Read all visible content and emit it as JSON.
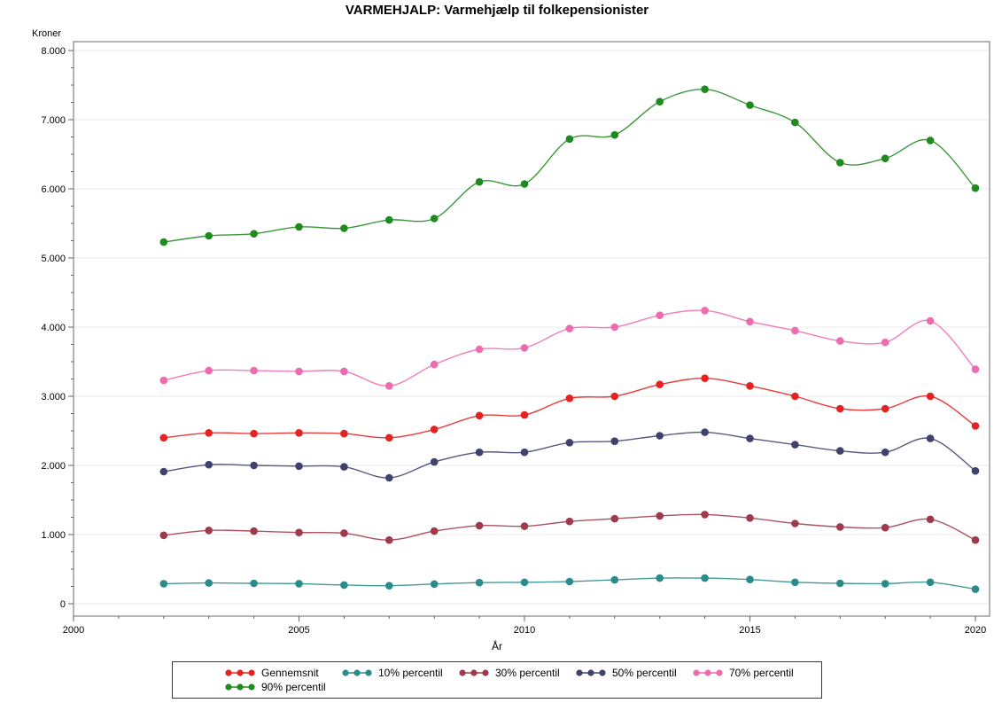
{
  "title": "VARMEHJALP: Varmehjælp til folkepensionister",
  "y_axis": {
    "label": "Kroner",
    "tick_values": [
      0,
      1000,
      2000,
      3000,
      4000,
      5000,
      6000,
      7000,
      8000
    ],
    "tick_labels": [
      "0",
      "1.000",
      "2.000",
      "3.000",
      "4.000",
      "5.000",
      "6.000",
      "7.000",
      "8.000"
    ],
    "minor_step": 250,
    "min": 0,
    "max": 8000
  },
  "x_axis": {
    "label": "År",
    "tick_values": [
      2000,
      2005,
      2010,
      2015,
      2020
    ],
    "tick_labels": [
      "2000",
      "2005",
      "2010",
      "2015",
      "2020"
    ],
    "minor_step": 1,
    "min": 2000,
    "max": 2020
  },
  "chart_data": {
    "type": "line",
    "title": "VARMEHJALP: Varmehjælp til folkepensionister",
    "xlabel": "År",
    "ylabel": "Kroner",
    "xlim": [
      2000,
      2020
    ],
    "ylim": [
      0,
      8000
    ],
    "grid": true,
    "legend_position": "bottom",
    "x": [
      2002,
      2003,
      2004,
      2005,
      2006,
      2007,
      2008,
      2009,
      2010,
      2011,
      2012,
      2013,
      2014,
      2015,
      2016,
      2017,
      2018,
      2019,
      2020
    ],
    "series": [
      {
        "name": "Gennemsnit",
        "color": "#e32221",
        "values": [
          2400,
          2470,
          2460,
          2470,
          2460,
          2400,
          2520,
          2720,
          2730,
          2970,
          3000,
          3170,
          3260,
          3150,
          3000,
          2820,
          2820,
          3000,
          2570
        ]
      },
      {
        "name": "10% percentil",
        "color": "#2a8b8b",
        "values": [
          290,
          300,
          295,
          290,
          270,
          260,
          285,
          305,
          310,
          320,
          345,
          370,
          370,
          350,
          310,
          295,
          290,
          310,
          210
        ]
      },
      {
        "name": "30% percentil",
        "color": "#9e3a4c",
        "values": [
          990,
          1060,
          1050,
          1030,
          1020,
          920,
          1050,
          1130,
          1120,
          1190,
          1230,
          1270,
          1290,
          1240,
          1160,
          1110,
          1100,
          1220,
          920
        ]
      },
      {
        "name": "50% percentil",
        "color": "#41416e",
        "values": [
          1910,
          2010,
          2000,
          1990,
          1980,
          1820,
          2050,
          2190,
          2190,
          2330,
          2350,
          2430,
          2480,
          2390,
          2300,
          2210,
          2190,
          2390,
          1920
        ]
      },
      {
        "name": "70% percentil",
        "color": "#ef6bb0",
        "values": [
          3230,
          3370,
          3370,
          3360,
          3360,
          3150,
          3460,
          3680,
          3700,
          3980,
          4000,
          4170,
          4240,
          4080,
          3950,
          3800,
          3780,
          4090,
          3390
        ]
      },
      {
        "name": "90% percentil",
        "color": "#1f8a1f",
        "values": [
          5230,
          5320,
          5350,
          5450,
          5430,
          5550,
          5570,
          6100,
          6070,
          6720,
          6780,
          7260,
          7440,
          7210,
          6960,
          6380,
          6440,
          6700,
          6010
        ]
      }
    ]
  },
  "colors": {
    "frame": "#8c8c8c",
    "gridline": "#e8e8e8",
    "tick": "#666666",
    "text": "#000000"
  }
}
